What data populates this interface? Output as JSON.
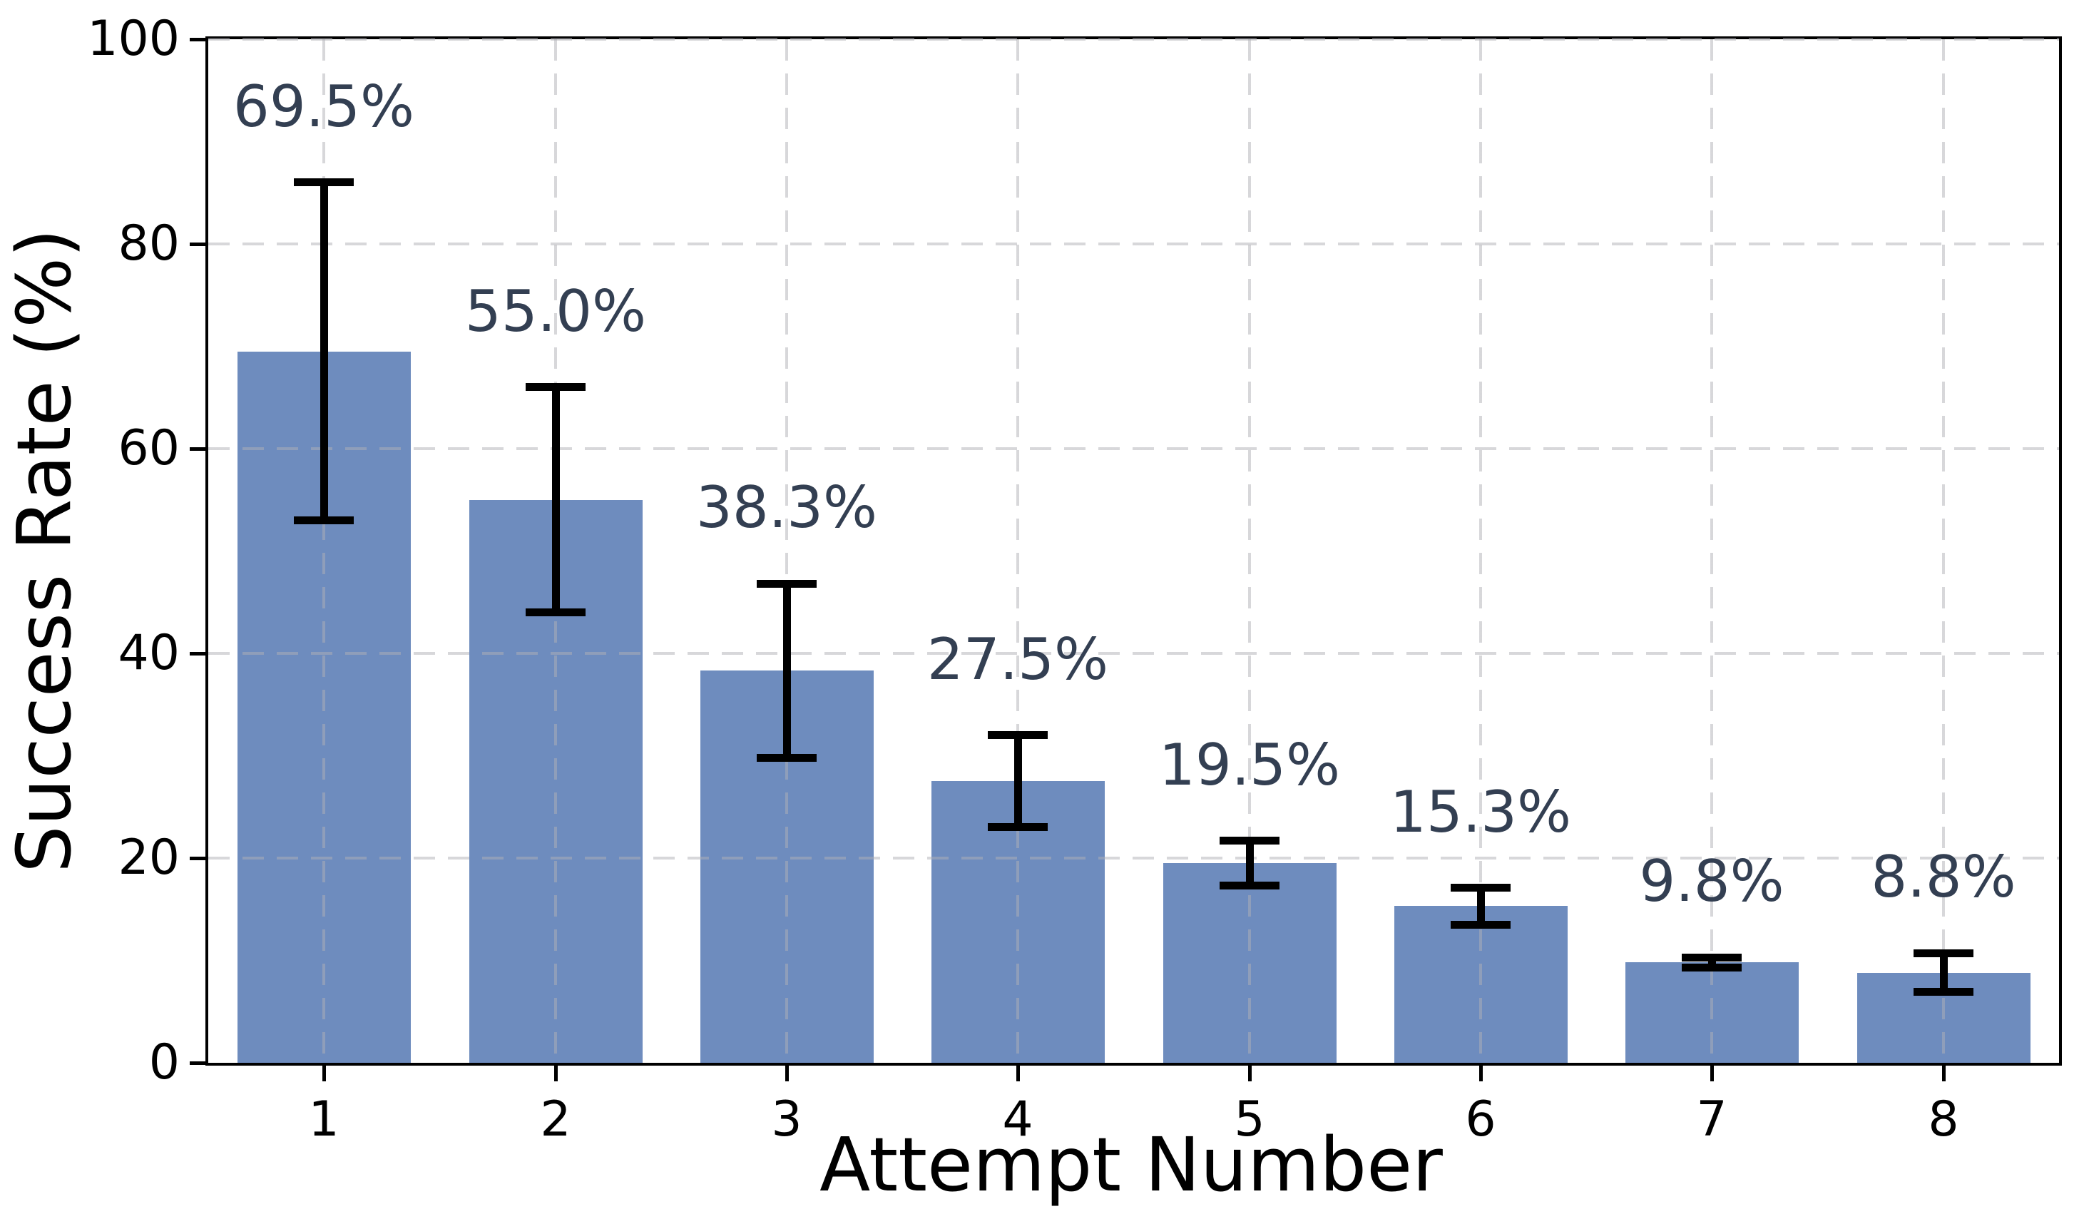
{
  "figure": {
    "background": "#ffffff"
  },
  "chart_data": {
    "type": "bar",
    "title": "",
    "xlabel": "Attempt Number",
    "ylabel": "Success Rate (%)",
    "categories": [
      "1",
      "2",
      "3",
      "4",
      "5",
      "6",
      "7",
      "8"
    ],
    "values": [
      69.5,
      55.0,
      38.3,
      27.5,
      19.5,
      15.3,
      9.8,
      8.8
    ],
    "bar_labels": [
      "69.5%",
      "55.0%",
      "38.3%",
      "27.5%",
      "19.5%",
      "15.3%",
      "9.8%",
      "8.8%"
    ],
    "error_plus": [
      16.5,
      11.0,
      8.5,
      4.5,
      2.2,
      1.8,
      0.5,
      1.9
    ],
    "error_minus": [
      16.5,
      11.0,
      8.5,
      4.5,
      2.2,
      1.8,
      0.5,
      1.9
    ],
    "ylim": [
      0,
      100
    ],
    "yticks": [
      0,
      20,
      40,
      60,
      80,
      100
    ],
    "yticklabels": [
      "0",
      "20",
      "40",
      "60",
      "80",
      "100"
    ],
    "grid": "dashed horizontal and vertical gridlines drawn over bars",
    "legend": "none",
    "colors": {
      "bar_fill": "#6E8CBE",
      "error_bar": "#000000",
      "bar_label_text": "#333F52",
      "grid_line": "rgba(176,176,182,0.5)",
      "axis_text": "#000000",
      "spine": "#000000"
    }
  }
}
